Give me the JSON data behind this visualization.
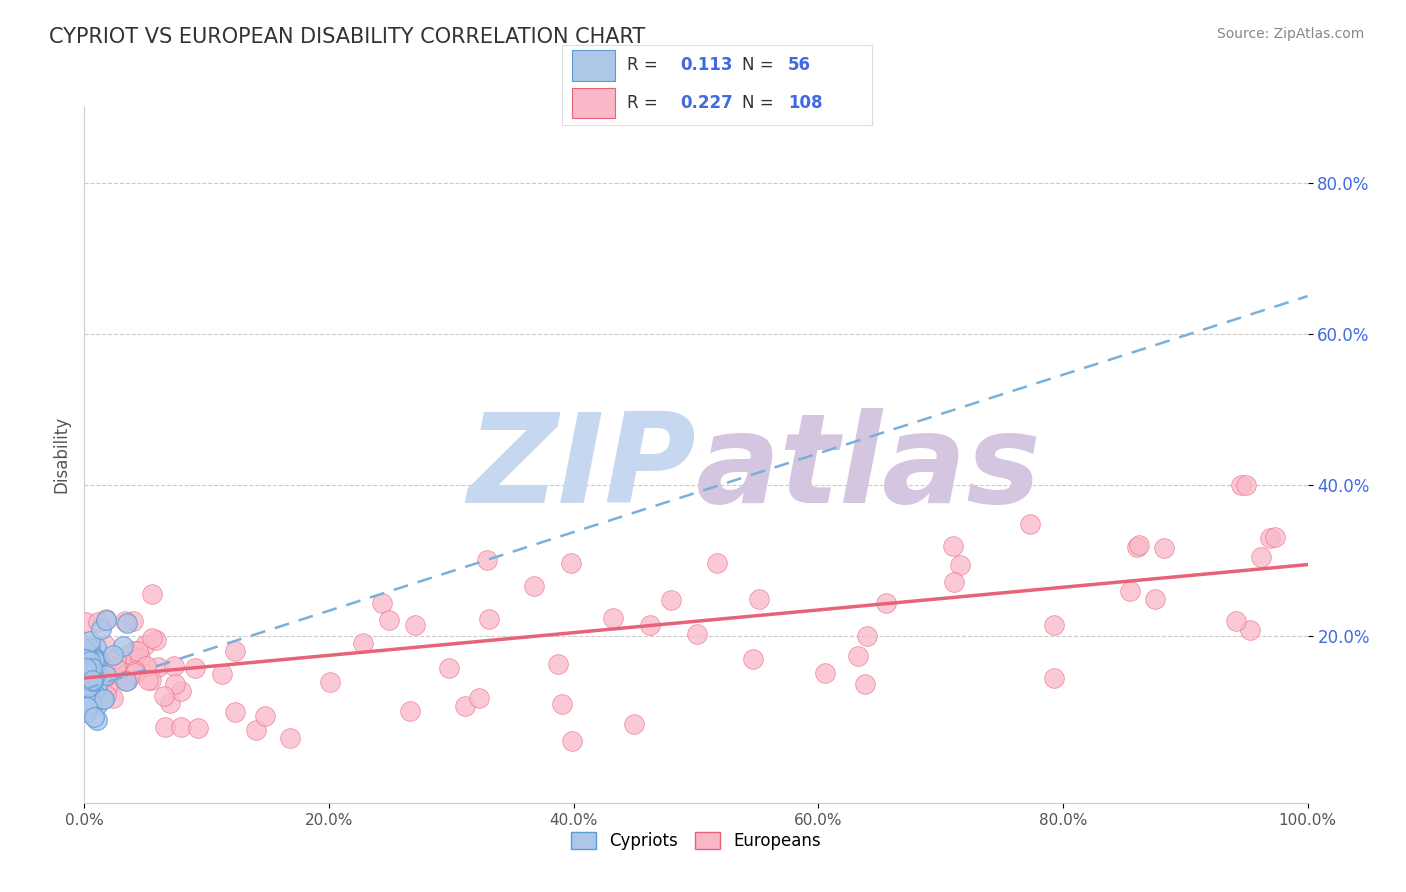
{
  "title": "CYPRIOT VS EUROPEAN DISABILITY CORRELATION CHART",
  "source": "Source: ZipAtlas.com",
  "ylabel": "Disability",
  "cypriot_R": 0.113,
  "cypriot_N": 56,
  "european_R": 0.227,
  "european_N": 108,
  "cypriot_color": "#aec6e8",
  "european_color": "#f9b8c8",
  "cypriot_edge_color": "#5b9bd5",
  "european_edge_color": "#e8637a",
  "trend_cypriot_color": "#7ab0d8",
  "trend_european_color": "#e8637a",
  "watermark": "ZIPAtlas",
  "watermark_color_1": "#c5d8ef",
  "watermark_color_2": "#d4c5e0",
  "xlim": [
    0.0,
    1.0
  ],
  "ylim": [
    -0.02,
    0.9
  ],
  "xticks": [
    0.0,
    0.2,
    0.4,
    0.6,
    0.8,
    1.0
  ],
  "xticklabels": [
    "0.0%",
    "20.0%",
    "40.0%",
    "60.0%",
    "80.0%",
    "100.0%"
  ],
  "yticks": [
    0.2,
    0.4,
    0.6,
    0.8
  ],
  "yticklabels": [
    "20.0%",
    "40.0%",
    "60.0%",
    "80.0%"
  ],
  "grid_color": "#cccccc",
  "background_color": "#ffffff",
  "title_color": "#333333",
  "axis_color": "#4169e1",
  "tick_color": "#4169e1",
  "trend_cyp_x0": 0.0,
  "trend_cyp_y0": 0.13,
  "trend_cyp_x1": 1.0,
  "trend_cyp_y1": 0.65,
  "trend_eur_x0": 0.0,
  "trend_eur_y0": 0.145,
  "trend_eur_x1": 1.0,
  "trend_eur_y1": 0.295
}
